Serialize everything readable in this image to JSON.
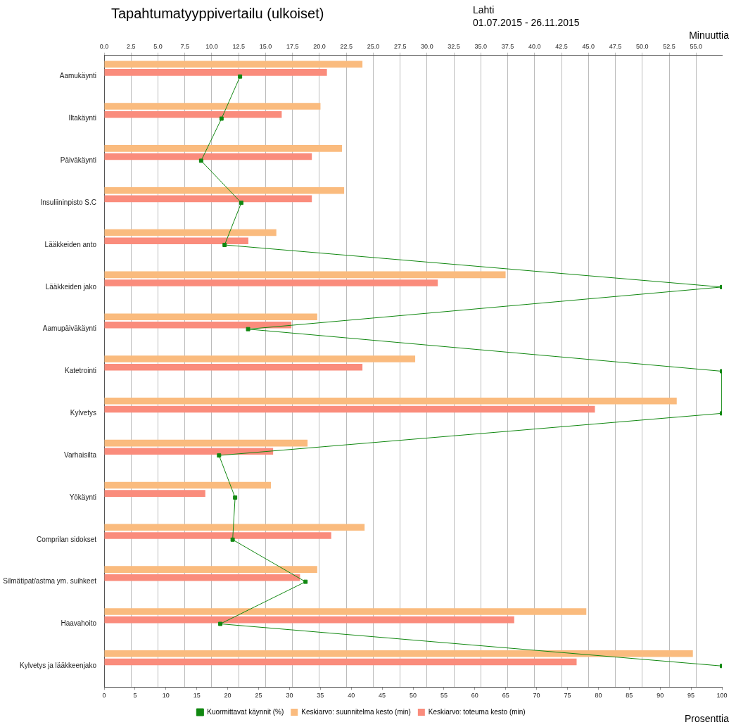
{
  "chart_data": {
    "type": "bar",
    "orientation": "horizontal",
    "title": "Tapahtumatyyppivertailu (ulkoiset)",
    "subtitle": "Lahti",
    "annotations": [
      "01.07.2015 - 26.11.2015"
    ],
    "x2label": "Minuuttia",
    "xlabel": "Prosenttia",
    "categories": [
      "Aamukäynti",
      "Iltakäynti",
      "Päiväkäynti",
      "Insuliininpisto S.C",
      "Lääkkeiden anto",
      "Lääkkeiden jako",
      "Aamupäiväkäynti",
      "Katetrointi",
      "Kylvetys",
      "Varhaisilta",
      "Yökäynti",
      "Comprilan sidokset",
      "Silmätipat/astma ym. suihkeet",
      "Haavahoito",
      "Kylvetys ja lääkkeenjako"
    ],
    "series": [
      {
        "name": "Keskiarvo: suunnitelma kesto (min)",
        "color": "#fabb7e",
        "axis": "x2",
        "values": [
          24.0,
          20.1,
          22.1,
          22.3,
          16.0,
          37.3,
          19.8,
          28.9,
          53.2,
          18.9,
          15.5,
          24.2,
          19.8,
          44.8,
          54.7
        ]
      },
      {
        "name": "Keskiarvo: toteuma kesto (min)",
        "color": "#fa8c7c",
        "axis": "x2",
        "values": [
          20.7,
          16.5,
          19.3,
          19.3,
          13.4,
          31.0,
          17.4,
          24.0,
          45.6,
          15.7,
          9.4,
          21.1,
          18.2,
          38.1,
          43.9
        ]
      },
      {
        "name": "Kuormittavat käynnit (%)",
        "color": "#118811",
        "type": "line",
        "marker": "square",
        "values": [
          22.0,
          19.0,
          15.7,
          22.2,
          19.5,
          100,
          23.3,
          100,
          100,
          18.6,
          21.2,
          20.8,
          32.6,
          18.8,
          100
        ]
      }
    ],
    "x2lim": [
      0,
      57.4
    ],
    "x2ticks": [
      {
        "value": 0,
        "label": "0.0"
      },
      2.5,
      {
        "value": 5,
        "label": "5.0"
      },
      7.5,
      {
        "value": 10,
        "label": "10.0"
      },
      12.5,
      {
        "value": 15,
        "label": "15.0"
      },
      17.5,
      {
        "value": 20,
        "label": "20.0"
      },
      22.5,
      {
        "value": 25,
        "label": "25.0"
      },
      27.5,
      {
        "value": 30,
        "label": "30.0"
      },
      32.5,
      {
        "value": 35,
        "label": "35.0"
      },
      37.5,
      {
        "value": 40,
        "label": "40.0"
      },
      42.5,
      {
        "value": 45,
        "label": "45.0"
      },
      47.5,
      {
        "value": 50,
        "label": "50.0"
      },
      52.5,
      {
        "value": 55,
        "label": "55.0"
      }
    ],
    "xlim": [
      0,
      100
    ],
    "xticks": [
      0,
      5,
      10,
      15,
      20,
      25,
      30,
      35,
      40,
      45,
      50,
      55,
      60,
      65,
      70,
      75,
      80,
      85,
      90,
      95,
      100
    ],
    "grid": "x",
    "legend": "bottom"
  }
}
